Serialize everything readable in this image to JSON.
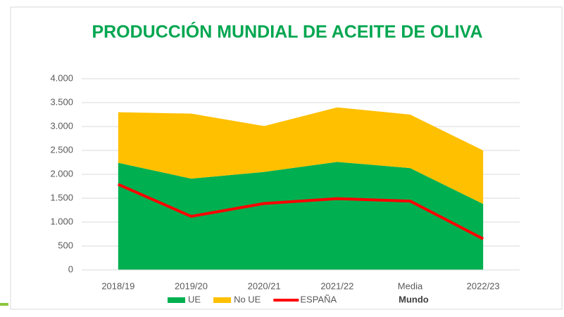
{
  "chart_data": {
    "type": "stacked_area_line",
    "title": "PRODUCCIÓN MUNDIAL DE ACEITE DE OLIVA",
    "categories": [
      "2018/19",
      "2019/20",
      "2020/21",
      "2021/22",
      "Media",
      "2022/23"
    ],
    "series": [
      {
        "name": "UE",
        "color": "#00b050",
        "kind": "area",
        "values": [
          2240,
          1910,
          2050,
          2260,
          2130,
          1380
        ]
      },
      {
        "name": "No UE",
        "color": "#ffc000",
        "kind": "area",
        "values": [
          1060,
          1360,
          960,
          1140,
          1120,
          1120
        ]
      },
      {
        "name": "ESPAÑA",
        "color": "#ff0000",
        "kind": "line",
        "values": [
          1790,
          1120,
          1390,
          1490,
          1440,
          650
        ]
      },
      {
        "name": "Mundo",
        "color": "none",
        "kind": "none",
        "values": [
          3300,
          3270,
          3010,
          3400,
          3250,
          2500
        ]
      }
    ],
    "ylim": [
      0,
      4000
    ],
    "yticks": [
      0,
      500,
      {
        "value": 1000,
        "label": "1.000"
      },
      {
        "value": 1500,
        "label": "1.500"
      },
      {
        "value": 2000,
        "label": "2.000"
      },
      {
        "value": 2500,
        "label": "2.500"
      },
      {
        "value": 3000,
        "label": "3.000"
      },
      {
        "value": 3500,
        "label": "3.500"
      },
      {
        "value": 4000,
        "label": "4.000"
      }
    ],
    "grid": true,
    "legend": "bottom"
  }
}
